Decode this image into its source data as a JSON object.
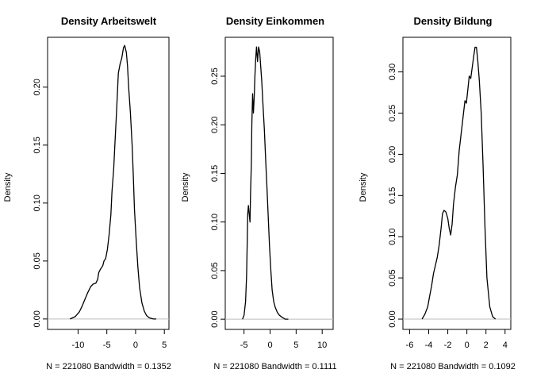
{
  "chart_data": [
    {
      "type": "line",
      "title": "Density Arbeitswelt",
      "xlabel": "N = 221080   Bandwidth = 0.1352",
      "ylabel": "Density",
      "xlim": [
        -15.3,
        5.8
      ],
      "ylim": [
        -0.009,
        0.243
      ],
      "x_ticks": [
        -10,
        -5,
        0,
        5
      ],
      "x_tick_labels": [
        "-10",
        "-5",
        "0",
        "5"
      ],
      "y_ticks": [
        0.0,
        0.05,
        0.1,
        0.15,
        0.2
      ],
      "y_tick_labels": [
        "0.00",
        "0.05",
        "0.10",
        "0.15",
        "0.20"
      ],
      "grid": false,
      "baseline": 0,
      "x": [
        -11.4,
        -10.5,
        -9.8,
        -9.3,
        -8.8,
        -8.3,
        -7.8,
        -7.4,
        -6.9,
        -6.6,
        -6.4,
        -6.1,
        -5.7,
        -5.5,
        -5.2,
        -4.9,
        -4.6,
        -4.3,
        -4.1,
        -3.8,
        -3.6,
        -3.4,
        -3.2,
        -3.0,
        -2.7,
        -2.4,
        -2.1,
        -1.9,
        -1.6,
        -1.4,
        -1.2,
        -0.9,
        -0.6,
        -0.4,
        -0.2,
        0.1,
        0.4,
        0.7,
        1.1,
        1.5,
        1.9,
        2.4,
        3.1,
        3.6
      ],
      "y": [
        0.0,
        0.002,
        0.006,
        0.011,
        0.017,
        0.023,
        0.028,
        0.03,
        0.031,
        0.034,
        0.04,
        0.043,
        0.046,
        0.05,
        0.052,
        0.06,
        0.073,
        0.09,
        0.11,
        0.13,
        0.15,
        0.17,
        0.19,
        0.212,
        0.22,
        0.225,
        0.234,
        0.236,
        0.23,
        0.218,
        0.2,
        0.178,
        0.15,
        0.125,
        0.095,
        0.068,
        0.045,
        0.027,
        0.014,
        0.007,
        0.003,
        0.001,
        0.0,
        0.0
      ]
    },
    {
      "type": "line",
      "title": "Density Einkommen",
      "xlabel": "N = 221080   Bandwidth = 0.1111",
      "ylabel": "Density",
      "xlim": [
        -8.6,
        12.1
      ],
      "ylim": [
        -0.0105,
        0.29
      ],
      "x_ticks": [
        -5,
        0,
        5,
        10
      ],
      "x_tick_labels": [
        "-5",
        "0",
        "5",
        "10"
      ],
      "y_ticks": [
        0.0,
        0.05,
        0.1,
        0.15,
        0.2,
        0.25
      ],
      "y_tick_labels": [
        "0.00",
        "0.05",
        "0.10",
        "0.15",
        "0.20",
        "0.25"
      ],
      "grid": false,
      "baseline": 0,
      "x": [
        -5.3,
        -5.0,
        -4.7,
        -4.5,
        -4.4,
        -4.3,
        -4.15,
        -4.0,
        -3.85,
        -3.75,
        -3.6,
        -3.5,
        -3.35,
        -3.2,
        -3.05,
        -2.9,
        -2.75,
        -2.6,
        -2.4,
        -2.2,
        -2.0,
        -1.8,
        -1.6,
        -1.35,
        -1.1,
        -0.85,
        -0.6,
        -0.35,
        -0.1,
        0.15,
        0.4,
        0.7,
        1.0,
        1.4,
        1.8,
        2.3,
        2.9,
        3.5
      ],
      "y": [
        0.0,
        0.004,
        0.018,
        0.045,
        0.075,
        0.108,
        0.117,
        0.108,
        0.1,
        0.13,
        0.16,
        0.2,
        0.232,
        0.212,
        0.228,
        0.25,
        0.268,
        0.28,
        0.265,
        0.28,
        0.275,
        0.26,
        0.245,
        0.22,
        0.195,
        0.165,
        0.135,
        0.105,
        0.075,
        0.05,
        0.03,
        0.018,
        0.012,
        0.007,
        0.004,
        0.002,
        0.0,
        0.0
      ]
    },
    {
      "type": "line",
      "title": "Density Bildung",
      "xlabel": "N = 221080   Bandwidth = 0.1092",
      "ylabel": "Density",
      "xlim": [
        -6.7,
        4.6
      ],
      "ylim": [
        -0.0125,
        0.342
      ],
      "x_ticks": [
        -6,
        -4,
        -2,
        0,
        2,
        4
      ],
      "x_tick_labels": [
        "-6",
        "-4",
        "-2",
        "0",
        "2",
        "4"
      ],
      "y_ticks": [
        0.0,
        0.05,
        0.1,
        0.15,
        0.2,
        0.25,
        0.3
      ],
      "y_tick_labels": [
        "0.00",
        "0.05",
        "0.10",
        "0.15",
        "0.20",
        "0.25",
        "0.30"
      ],
      "grid": false,
      "baseline": 0,
      "x": [
        -4.7,
        -4.4,
        -4.1,
        -3.9,
        -3.7,
        -3.5,
        -3.3,
        -3.1,
        -2.9,
        -2.7,
        -2.55,
        -2.4,
        -2.2,
        -2.0,
        -1.85,
        -1.7,
        -1.55,
        -1.4,
        -1.2,
        -1.0,
        -0.8,
        -0.6,
        -0.4,
        -0.2,
        -0.05,
        0.1,
        0.25,
        0.4,
        0.55,
        0.7,
        0.85,
        1.0,
        1.15,
        1.3,
        1.5,
        1.7,
        1.9,
        2.1,
        2.4,
        2.7,
        3.0
      ],
      "y": [
        0.0,
        0.006,
        0.015,
        0.028,
        0.04,
        0.055,
        0.065,
        0.075,
        0.09,
        0.11,
        0.128,
        0.132,
        0.13,
        0.122,
        0.11,
        0.102,
        0.115,
        0.14,
        0.16,
        0.175,
        0.205,
        0.225,
        0.245,
        0.265,
        0.262,
        0.278,
        0.295,
        0.292,
        0.305,
        0.318,
        0.33,
        0.33,
        0.312,
        0.29,
        0.25,
        0.185,
        0.11,
        0.05,
        0.015,
        0.003,
        0.0
      ]
    }
  ]
}
